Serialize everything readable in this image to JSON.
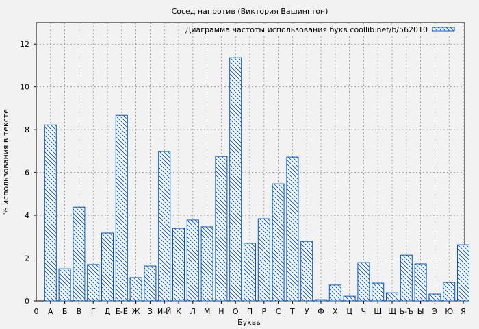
{
  "chart_data": {
    "type": "bar",
    "title": "Сосед напротив (Виктория Вашингтон)",
    "xlabel": "Буквы",
    "ylabel": "% использования в тексте",
    "ylim": [
      0,
      13
    ],
    "yticks": [
      0,
      2,
      4,
      6,
      8,
      10,
      12
    ],
    "x_origin_label": "0",
    "grid": true,
    "legend_position": "top-right",
    "bar_color": "#0055cc",
    "bar_pattern": "diagonal-hatch",
    "series": [
      {
        "name": "Диаграмма частоты использования букв coollib.net/b/562010",
        "values": [
          8.22,
          1.5,
          4.38,
          1.7,
          3.17,
          8.67,
          1.09,
          1.63,
          6.98,
          3.39,
          3.78,
          3.46,
          6.75,
          11.36,
          2.69,
          3.84,
          5.47,
          6.72,
          2.78,
          0.06,
          0.74,
          0.22,
          1.79,
          0.83,
          0.38,
          2.14,
          1.73,
          0.32,
          0.86,
          2.62
        ]
      }
    ],
    "categories": [
      "А",
      "Б",
      "В",
      "Г",
      "Д",
      "Е-Ё",
      "Ж",
      "З",
      "И-Й",
      "К",
      "Л",
      "М",
      "Н",
      "О",
      "П",
      "Р",
      "С",
      "Т",
      "У",
      "Ф",
      "Х",
      "Ц",
      "Ч",
      "Ш",
      "Щ",
      "Ь-Ъ",
      "Ы",
      "Э",
      "Ю",
      "Я"
    ]
  }
}
